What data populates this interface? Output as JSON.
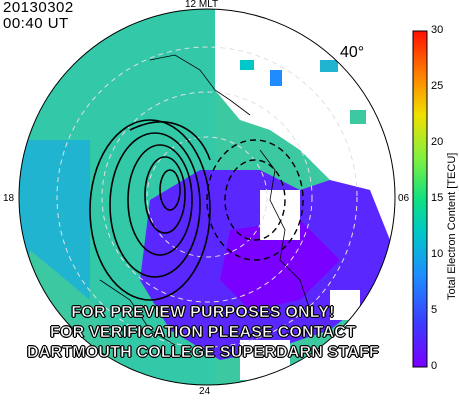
{
  "header": {
    "date": "20130302",
    "time": "00:40 UT"
  },
  "mlt_labels": {
    "top": "12 MLT",
    "left": "18",
    "right": "06",
    "bottom": "24"
  },
  "lat_label": "40°",
  "colorbar": {
    "title": "Total Electron Content [TECU]",
    "ticks": [
      "30",
      "25",
      "20",
      "15",
      "10",
      "5",
      "0"
    ],
    "colors": [
      "#7a00ff",
      "#3c3cff",
      "#1e8cff",
      "#00c8c8",
      "#10e080",
      "#80f040",
      "#f0e000",
      "#ff8000",
      "#ff1000"
    ]
  },
  "watermark": {
    "line1": "FOR PREVIEW PURPOSES ONLY!",
    "line2": "FOR VERIFICATION PLEASE CONTACT",
    "line3": "DARTMOUTH COLLEGE SUPERDARN STAFF"
  }
}
